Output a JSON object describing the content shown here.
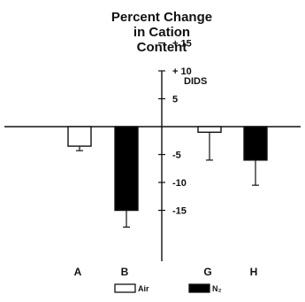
{
  "chart_data": {
    "type": "bar",
    "title_lines": [
      "Percent Change",
      "in Cation",
      "Content"
    ],
    "annotation": "DIDS",
    "categories": [
      "A",
      "B",
      "G",
      "H"
    ],
    "bars": [
      {
        "category": "A",
        "condition": "Air",
        "value": -3.5,
        "error": 0.8
      },
      {
        "category": "B",
        "condition": "N2",
        "value": -15.0,
        "error": 3.0
      },
      {
        "category": "G",
        "condition": "Air",
        "value": -1.0,
        "error": 5.0
      },
      {
        "category": "H",
        "condition": "N2",
        "value": -6.0,
        "error": 4.5
      }
    ],
    "ylim": [
      -20,
      17
    ],
    "ytick_labels": [
      "+ 15",
      "+ 10",
      "5",
      "-5",
      "-10",
      "-15"
    ],
    "ytick_values": [
      15,
      10,
      5,
      -5,
      -10,
      -15
    ],
    "legend": [
      {
        "label": "Air",
        "fill": "#ffffff"
      },
      {
        "label": "N₂",
        "fill": "#000000"
      }
    ],
    "legend_position": "bottom",
    "colors": {
      "air": "#ffffff",
      "n2": "#000000",
      "ink": "#111111"
    }
  }
}
